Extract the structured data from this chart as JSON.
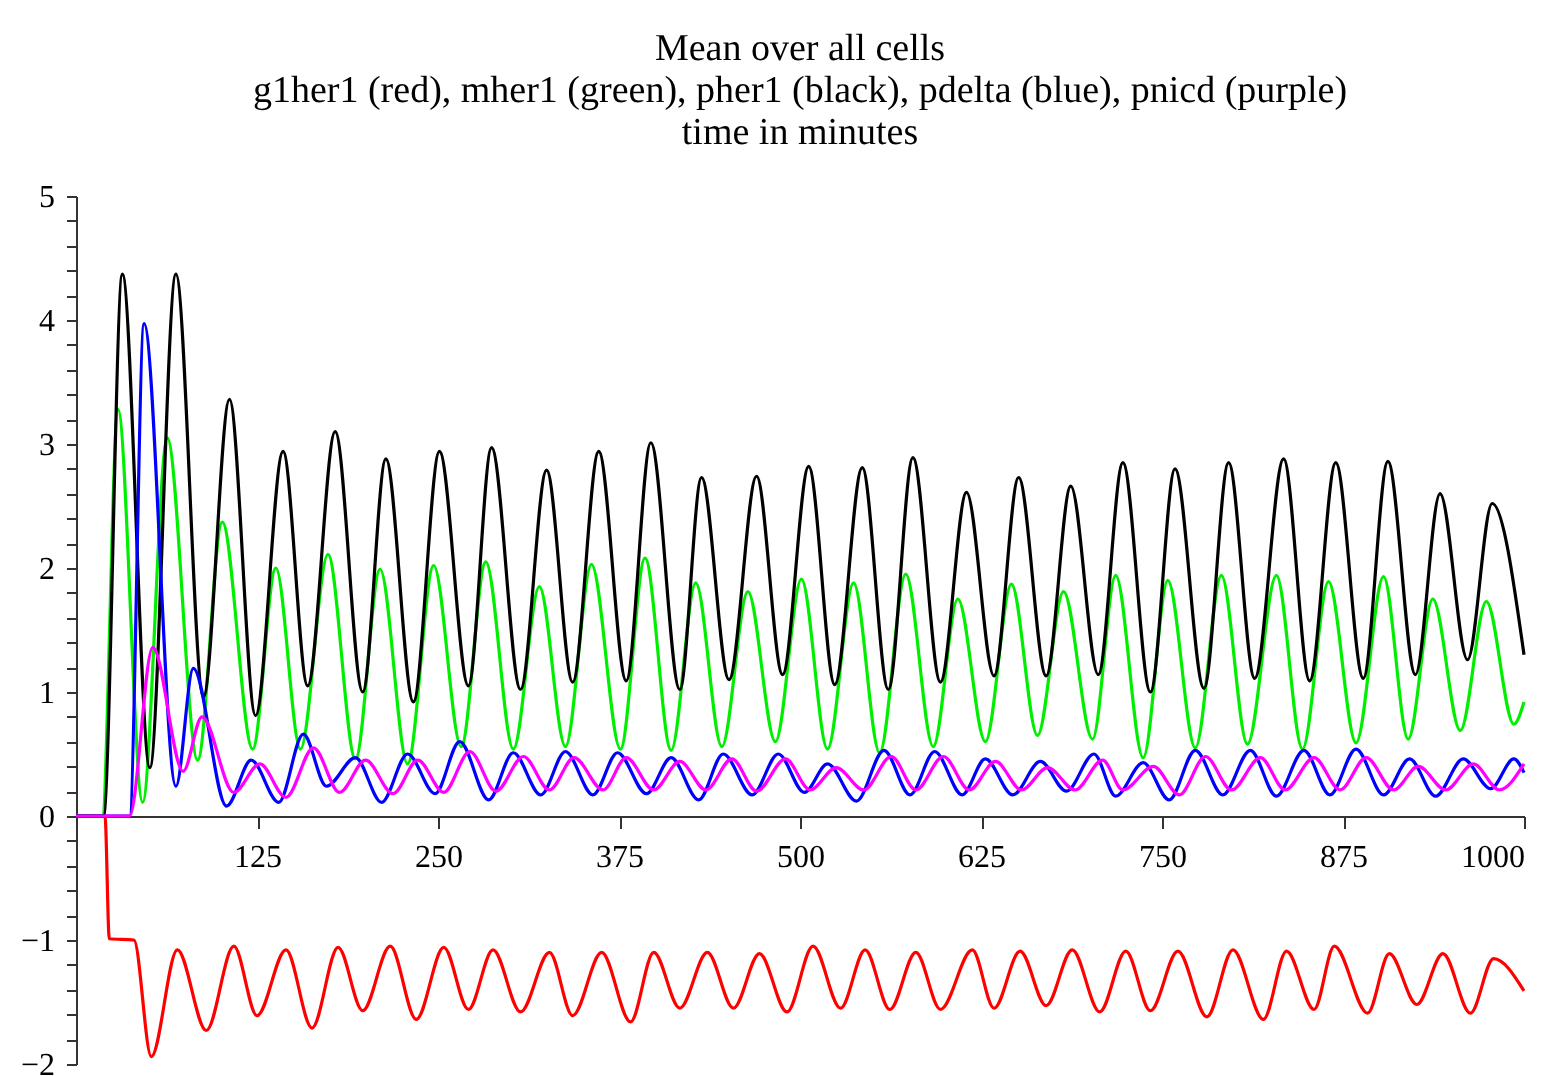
{
  "chart_data": {
    "type": "line",
    "title": "Mean over all cells",
    "subtitle": "g1her1 (red), mher1 (green), pher1 (black), pdelta (blue), pnicd (purple)\ntime in minutes",
    "xlim": [
      0,
      1000
    ],
    "xticks": [
      125,
      250,
      375,
      500,
      625,
      750,
      875,
      1000
    ],
    "ylim": [
      -2,
      5
    ],
    "yticks": [
      {
        "value": -2,
        "label": "−2"
      },
      {
        "value": -1.8,
        "label": null
      },
      {
        "value": -1.6,
        "label": null
      },
      {
        "value": -1.4,
        "label": null
      },
      {
        "value": -1.2,
        "label": null
      },
      {
        "value": -1,
        "label": "−1"
      },
      {
        "value": -0.8,
        "label": null
      },
      {
        "value": -0.6,
        "label": null
      },
      {
        "value": -0.4,
        "label": null
      },
      {
        "value": -0.2,
        "label": null
      },
      0,
      {
        "value": 0.2,
        "label": null
      },
      {
        "value": 0.4,
        "label": null
      },
      {
        "value": 0.6,
        "label": null
      },
      {
        "value": 0.8,
        "label": null
      },
      1,
      {
        "value": 1.2,
        "label": null
      },
      {
        "value": 1.4,
        "label": null
      },
      {
        "value": 1.6,
        "label": null
      },
      {
        "value": 1.8,
        "label": null
      },
      2,
      {
        "value": 2.2,
        "label": null
      },
      {
        "value": 2.4,
        "label": null
      },
      {
        "value": 2.6,
        "label": null
      },
      {
        "value": 2.8,
        "label": null
      },
      3,
      {
        "value": 3.2,
        "label": null
      },
      {
        "value": 3.4,
        "label": null
      },
      {
        "value": 3.6,
        "label": null
      },
      {
        "value": 3.8,
        "label": null
      },
      4,
      {
        "value": 4.2,
        "label": null
      },
      {
        "value": 4.4,
        "label": null
      },
      {
        "value": 4.6,
        "label": null
      },
      {
        "value": 4.8,
        "label": null
      },
      5
    ],
    "series": [
      {
        "color": "#ff0000",
        "x": [
          0,
          20,
          23,
          40,
          52,
          70,
          90,
          109,
          125,
          145,
          163,
          181,
          198,
          217,
          235,
          254,
          271,
          288,
          307,
          327,
          343,
          363,
          383,
          399,
          417,
          436,
          454,
          472,
          491,
          509,
          528,
          545,
          562,
          580,
          597,
          619,
          634,
          652,
          670,
          688,
          707,
          725,
          742,
          761,
          781,
          799,
          820,
          836,
          855,
          869,
          892,
          907,
          926,
          944,
          963,
          979,
          1000
        ],
        "values": [
          0,
          0,
          -0.99,
          -1.0,
          -1.94,
          -1.08,
          -1.73,
          -1.05,
          -1.61,
          -1.08,
          -1.71,
          -1.06,
          -1.57,
          -1.05,
          -1.64,
          -1.06,
          -1.56,
          -1.08,
          -1.58,
          -1.1,
          -1.61,
          -1.1,
          -1.66,
          -1.1,
          -1.55,
          -1.1,
          -1.55,
          -1.11,
          -1.58,
          -1.05,
          -1.55,
          -1.08,
          -1.56,
          -1.1,
          -1.56,
          -1.08,
          -1.55,
          -1.09,
          -1.53,
          -1.08,
          -1.58,
          -1.09,
          -1.57,
          -1.09,
          -1.62,
          -1.08,
          -1.64,
          -1.09,
          -1.56,
          -1.05,
          -1.59,
          -1.11,
          -1.52,
          -1.11,
          -1.59,
          -1.15,
          -1.41
        ]
      },
      {
        "color": "#00ee00",
        "x": [
          0,
          18,
          29,
          46,
          63,
          84,
          101,
          122,
          138,
          155,
          174,
          193,
          210,
          229,
          247,
          266,
          283,
          302,
          320,
          338,
          356,
          376,
          393,
          411,
          428,
          446,
          464,
          483,
          501,
          519,
          537,
          555,
          573,
          592,
          609,
          628,
          646,
          664,
          682,
          702,
          718,
          737,
          754,
          773,
          791,
          809,
          829,
          847,
          865,
          884,
          903,
          920,
          937,
          956,
          974,
          993,
          1000
        ],
        "values": [
          0,
          0,
          3.28,
          0.11,
          3.05,
          0.45,
          2.37,
          0.54,
          2.0,
          0.54,
          2.11,
          0.46,
          1.99,
          0.42,
          2.02,
          0.56,
          2.05,
          0.54,
          1.85,
          0.56,
          2.03,
          0.54,
          2.08,
          0.53,
          1.88,
          0.56,
          1.81,
          0.6,
          1.91,
          0.54,
          1.88,
          0.51,
          1.95,
          0.56,
          1.75,
          0.6,
          1.87,
          0.65,
          1.81,
          0.62,
          1.94,
          0.47,
          1.9,
          0.55,
          1.94,
          0.58,
          1.94,
          0.54,
          1.89,
          0.59,
          1.93,
          0.62,
          1.75,
          0.69,
          1.73,
          0.74,
          0.92
        ]
      },
      {
        "color": "#000000",
        "x": [
          0,
          19,
          32,
          51,
          69,
          88,
          106,
          124,
          143,
          160,
          179,
          198,
          214,
          233,
          251,
          271,
          287,
          307,
          325,
          343,
          361,
          380,
          397,
          417,
          432,
          451,
          470,
          488,
          506,
          524,
          543,
          561,
          578,
          597,
          615,
          634,
          651,
          670,
          687,
          706,
          723,
          742,
          759,
          779,
          796,
          814,
          834,
          852,
          870,
          889,
          906,
          925,
          942,
          961,
          978,
          1000
        ],
        "values": [
          0,
          0,
          4.37,
          0.39,
          4.37,
          0.96,
          3.36,
          0.81,
          2.94,
          1.05,
          3.1,
          1.0,
          2.88,
          0.92,
          2.94,
          1.05,
          2.97,
          1.02,
          2.79,
          1.08,
          2.94,
          1.09,
          3.01,
          1.02,
          2.73,
          1.1,
          2.74,
          1.14,
          2.82,
          1.06,
          2.81,
          1.02,
          2.89,
          1.08,
          2.61,
          1.13,
          2.73,
          1.13,
          2.66,
          1.14,
          2.85,
          1.0,
          2.8,
          1.03,
          2.85,
          1.11,
          2.88,
          1.09,
          2.85,
          1.11,
          2.86,
          1.14,
          2.6,
          1.26,
          2.52,
          1.3
        ]
      },
      {
        "color": "#0000ff",
        "x": [
          0,
          37,
          47,
          69,
          81,
          104,
          121,
          140,
          157,
          173,
          193,
          211,
          229,
          248,
          265,
          285,
          302,
          321,
          338,
          357,
          374,
          394,
          411,
          430,
          447,
          467,
          485,
          503,
          519,
          539,
          558,
          576,
          593,
          612,
          628,
          647,
          666,
          684,
          703,
          718,
          737,
          755,
          773,
          792,
          811,
          829,
          848,
          866,
          884,
          903,
          921,
          939,
          958,
          977,
          993,
          1000
        ],
        "values": [
          0,
          0,
          3.97,
          0.24,
          1.19,
          0.08,
          0.45,
          0.11,
          0.66,
          0.24,
          0.47,
          0.11,
          0.5,
          0.18,
          0.6,
          0.13,
          0.51,
          0.17,
          0.52,
          0.17,
          0.51,
          0.18,
          0.47,
          0.13,
          0.5,
          0.17,
          0.5,
          0.19,
          0.42,
          0.12,
          0.53,
          0.17,
          0.52,
          0.17,
          0.46,
          0.17,
          0.44,
          0.2,
          0.5,
          0.16,
          0.43,
          0.13,
          0.53,
          0.17,
          0.53,
          0.16,
          0.53,
          0.17,
          0.54,
          0.17,
          0.46,
          0.16,
          0.46,
          0.22,
          0.46,
          0.35
        ]
      },
      {
        "color": "#ff00ff",
        "x": [
          0,
          37,
          53,
          74,
          87,
          109,
          127,
          145,
          164,
          182,
          200,
          219,
          236,
          254,
          272,
          290,
          309,
          327,
          344,
          364,
          380,
          399,
          417,
          435,
          453,
          470,
          490,
          507,
          525,
          544,
          563,
          580,
          599,
          617,
          635,
          653,
          671,
          690,
          709,
          723,
          744,
          762,
          780,
          798,
          818,
          835,
          855,
          873,
          891,
          910,
          927,
          946,
          965,
          983,
          1000
        ],
        "values": [
          0,
          0,
          1.36,
          0.36,
          0.8,
          0.19,
          0.42,
          0.15,
          0.55,
          0.19,
          0.45,
          0.18,
          0.45,
          0.19,
          0.52,
          0.2,
          0.48,
          0.21,
          0.47,
          0.21,
          0.47,
          0.21,
          0.44,
          0.21,
          0.46,
          0.2,
          0.46,
          0.21,
          0.39,
          0.21,
          0.48,
          0.21,
          0.48,
          0.21,
          0.44,
          0.21,
          0.39,
          0.21,
          0.45,
          0.21,
          0.4,
          0.17,
          0.48,
          0.21,
          0.47,
          0.21,
          0.47,
          0.21,
          0.47,
          0.21,
          0.4,
          0.21,
          0.42,
          0.21,
          0.42
        ]
      }
    ]
  }
}
